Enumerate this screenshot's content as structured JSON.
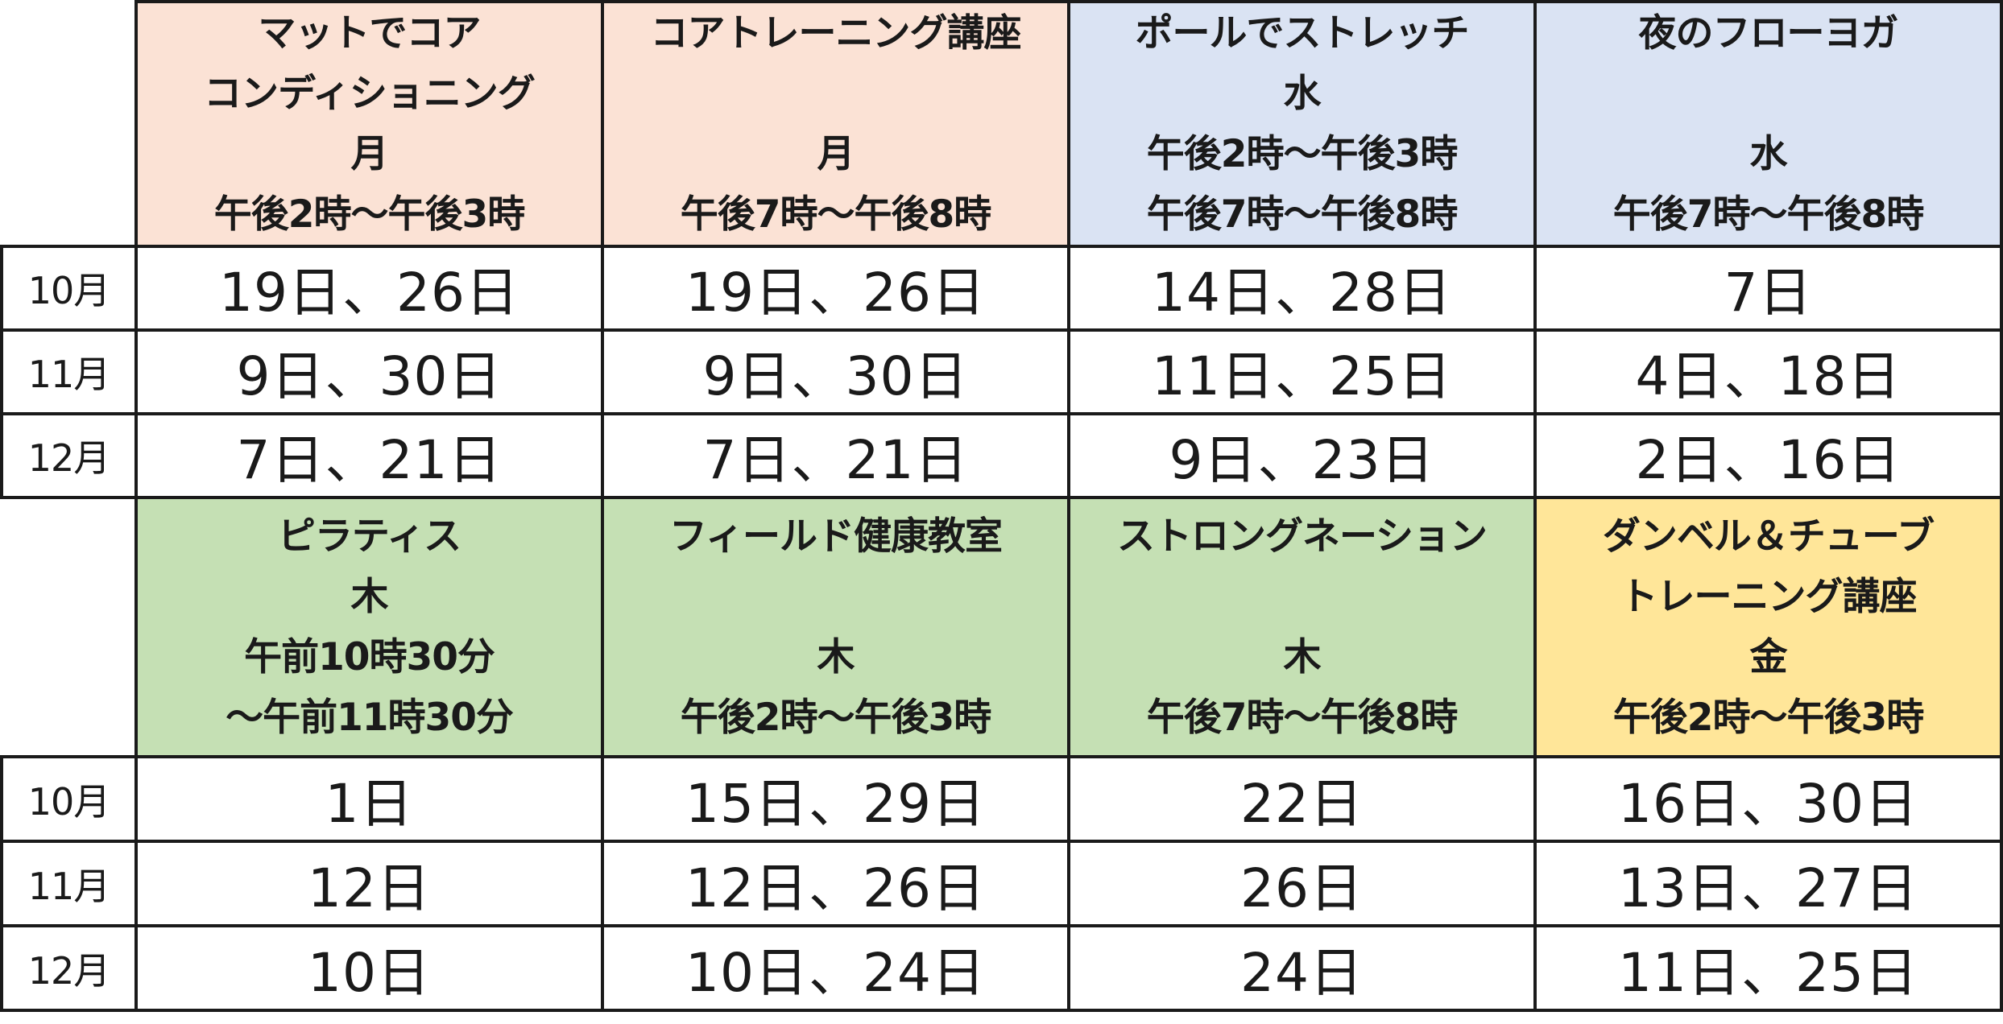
{
  "sections": [
    {
      "classes": [
        {
          "lines": [
            "マットでコア",
            "コンディショニング",
            "月",
            "午後2時～午後3時"
          ],
          "color": "#fbe2d5",
          "dates": [
            "19日、26日",
            "9日、30日",
            "7日、21日"
          ]
        },
        {
          "lines": [
            "コアトレーニング講座",
            "",
            "月",
            "午後7時～午後8時"
          ],
          "color": "#fbe2d5",
          "dates": [
            "19日、26日",
            "9日、30日",
            "7日、21日"
          ]
        },
        {
          "lines": [
            "ポールでストレッチ",
            "水",
            "午後2時～午後3時",
            "午後7時～午後8時"
          ],
          "color": "#dae3f3",
          "dates": [
            "14日、28日",
            "11日、25日",
            "9日、23日"
          ]
        },
        {
          "lines": [
            "夜のフローヨガ",
            "",
            "水",
            "午後7時～午後8時"
          ],
          "color": "#dae3f3",
          "dates": [
            "7日",
            "4日、18日",
            "2日、16日"
          ]
        }
      ],
      "months": [
        "10月",
        "11月",
        "12月"
      ]
    },
    {
      "classes": [
        {
          "lines": [
            "ピラティス",
            "木",
            "午前10時30分",
            "～午前11時30分"
          ],
          "color": "#c5e0b4",
          "dates": [
            "1日",
            "12日",
            "10日"
          ]
        },
        {
          "lines": [
            "フィールド健康教室",
            "",
            "木",
            "午後2時～午後3時"
          ],
          "color": "#c5e0b4",
          "dates": [
            "15日、29日",
            "12日、26日",
            "10日、24日"
          ]
        },
        {
          "lines": [
            "ストロングネーション",
            "",
            "木",
            "午後7時～午後8時"
          ],
          "color": "#c5e0b4",
          "dates": [
            "22日",
            "26日",
            "24日"
          ]
        },
        {
          "lines": [
            "ダンベル＆チューブ",
            "トレーニング講座",
            "金",
            "午後2時～午後3時"
          ],
          "color": "#ffe699",
          "dates": [
            "16日、30日",
            "13日、27日",
            "11日、25日"
          ]
        }
      ],
      "months": [
        "10月",
        "11月",
        "12月"
      ]
    }
  ]
}
